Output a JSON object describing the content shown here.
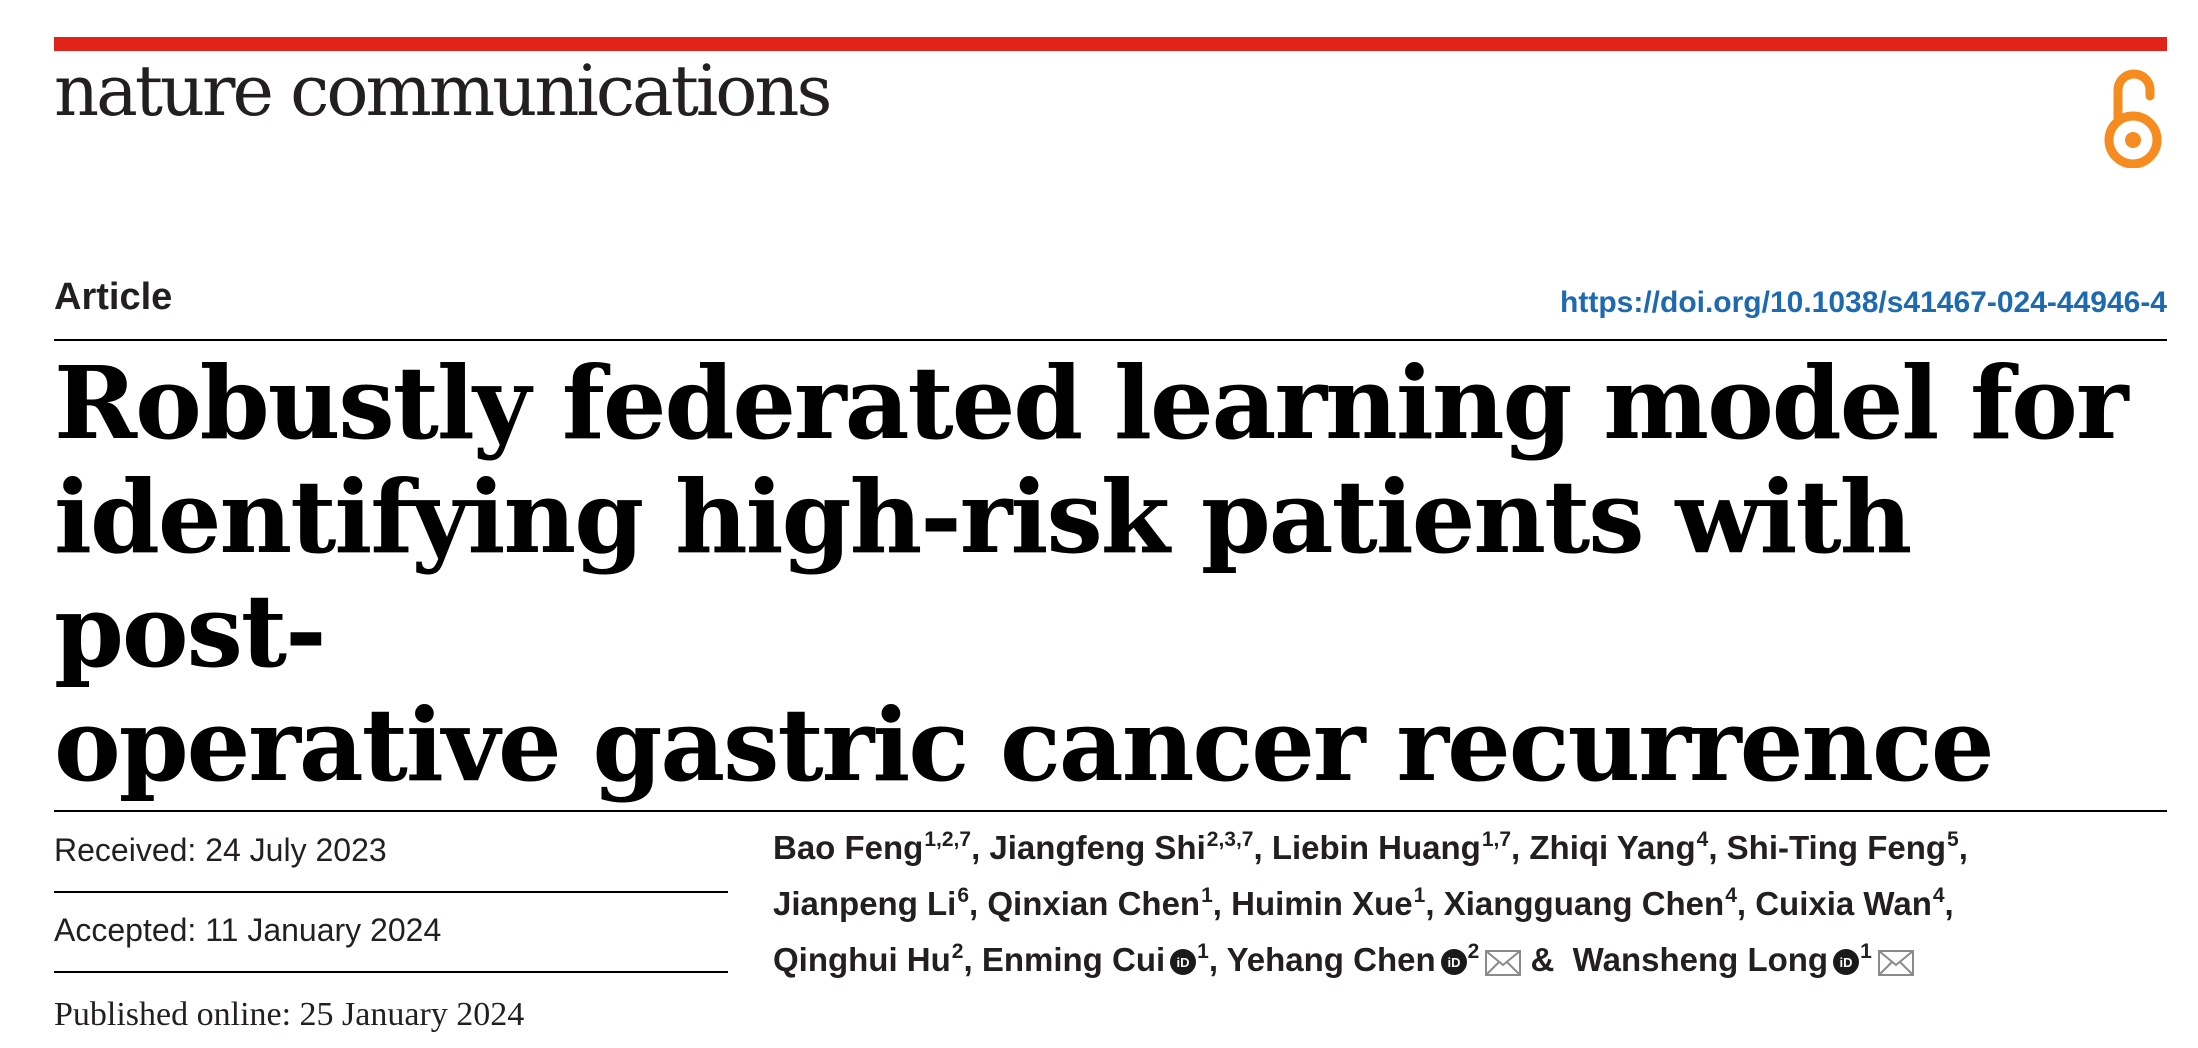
{
  "journal": "nature communications",
  "article_type": "Article",
  "doi": "https://doi.org/10.1038/s41467-024-44946-4",
  "title_lines": [
    "Robustly federated learning model for",
    "identifying high-risk patients with post-",
    "operative gastric cancer recurrence"
  ],
  "dates": {
    "received": "Received: 24 July 2023",
    "accepted": "Accepted: 11 January 2024",
    "published": "Published online: 25 January 2024"
  },
  "authors": [
    {
      "name": "Bao Feng",
      "aff": "1,2,7",
      "sep": ", "
    },
    {
      "name": "Jiangfeng Shi",
      "aff": "2,3,7",
      "sep": ", "
    },
    {
      "name": "Liebin Huang",
      "aff": "1,7",
      "sep": ", "
    },
    {
      "name": "Zhiqi Yang",
      "aff": "4",
      "sep": ", "
    },
    {
      "name": "Shi-Ting Feng",
      "aff": "5",
      "sep": ","
    },
    {
      "name": "Jianpeng Li",
      "aff": "6",
      "sep": ", "
    },
    {
      "name": "Qinxian Chen",
      "aff": "1",
      "sep": ", "
    },
    {
      "name": "Huimin Xue",
      "aff": "1",
      "sep": ", "
    },
    {
      "name": "Xiangguang Chen",
      "aff": "4",
      "sep": ", "
    },
    {
      "name": "Cuixia Wan",
      "aff": "4",
      "sep": ","
    },
    {
      "name": "Qinghui Hu",
      "aff": "2",
      "sep": ", "
    },
    {
      "name": "Enming Cui",
      "aff": "1",
      "orcid": true,
      "sep": ", "
    },
    {
      "name": "Yehang Chen",
      "aff": "2",
      "orcid": true,
      "mail": true,
      "sep": " & "
    },
    {
      "name": "Wansheng Long",
      "aff": "1",
      "orcid": true,
      "mail": true,
      "sep": ""
    }
  ],
  "colors": {
    "accent_bar": "#e2231a",
    "open_access_icon": "#f68b1f",
    "doi_link": "#1d6ab0"
  },
  "icons": [
    "open-access-icon",
    "orcid-icon",
    "mail-icon"
  ]
}
